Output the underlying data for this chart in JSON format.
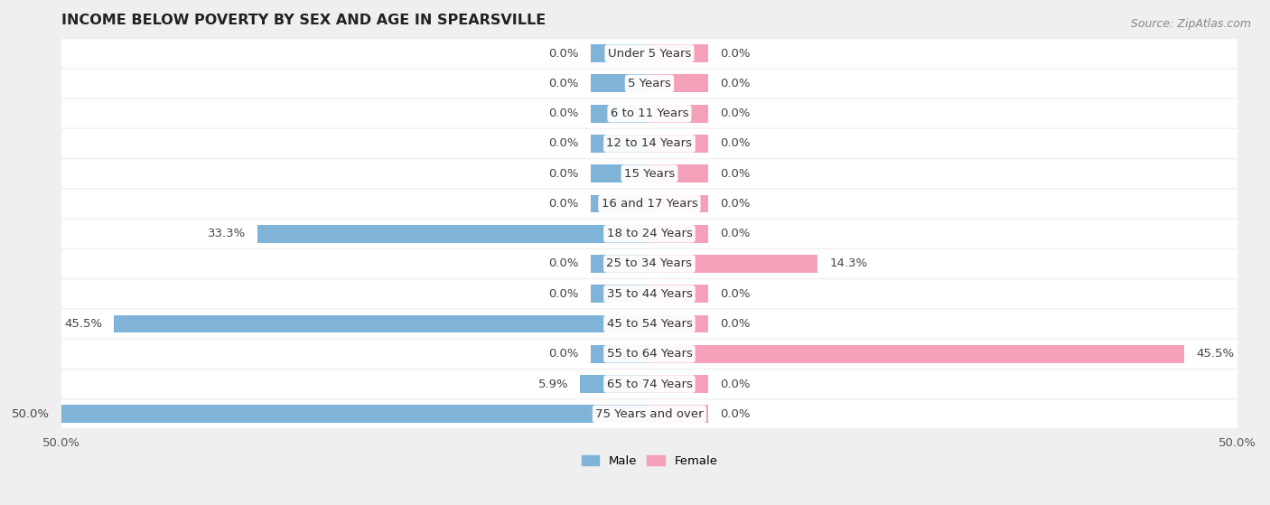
{
  "title": "INCOME BELOW POVERTY BY SEX AND AGE IN SPEARSVILLE",
  "source": "Source: ZipAtlas.com",
  "categories": [
    "Under 5 Years",
    "5 Years",
    "6 to 11 Years",
    "12 to 14 Years",
    "15 Years",
    "16 and 17 Years",
    "18 to 24 Years",
    "25 to 34 Years",
    "35 to 44 Years",
    "45 to 54 Years",
    "55 to 64 Years",
    "65 to 74 Years",
    "75 Years and over"
  ],
  "male_values": [
    0.0,
    0.0,
    0.0,
    0.0,
    0.0,
    0.0,
    33.3,
    0.0,
    0.0,
    45.5,
    0.0,
    5.9,
    50.0
  ],
  "female_values": [
    0.0,
    0.0,
    0.0,
    0.0,
    0.0,
    0.0,
    0.0,
    14.3,
    0.0,
    0.0,
    45.5,
    0.0,
    0.0
  ],
  "male_color": "#7fb3d8",
  "female_color": "#f4a0b8",
  "male_label": "Male",
  "female_label": "Female",
  "xlim": 50.0,
  "min_bar": 5.0,
  "background_color": "#efefef",
  "row_color": "#ffffff",
  "title_fontsize": 11.5,
  "source_fontsize": 9,
  "label_fontsize": 9.5,
  "tick_fontsize": 9.5,
  "bar_height": 0.6
}
